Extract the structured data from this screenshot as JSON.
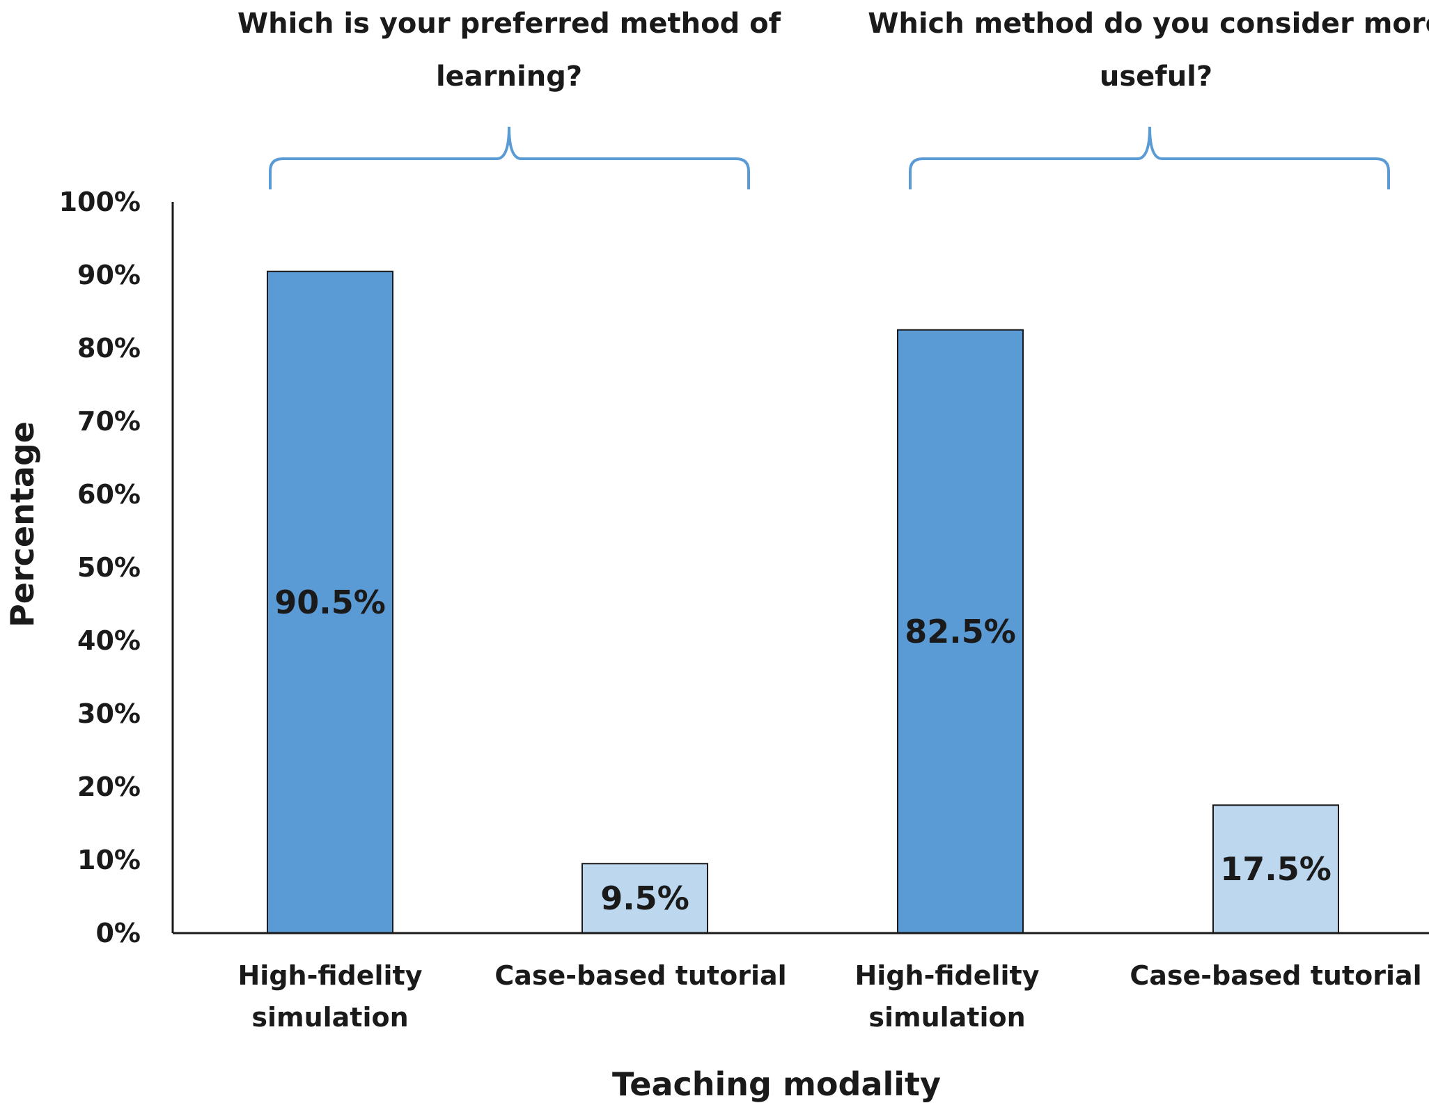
{
  "chart_data": {
    "type": "bar",
    "xlabel": "Teaching modality",
    "ylabel": "Percentage",
    "ylim": [
      0,
      100
    ],
    "yticks": [
      "0%",
      "10%",
      "20%",
      "30%",
      "40%",
      "50%",
      "60%",
      "70%",
      "80%",
      "90%",
      "100%"
    ],
    "groups": [
      {
        "question_lines": [
          "Which is your preferred method of",
          "learning?"
        ],
        "bars": [
          {
            "category_lines": [
              "High-fidelity",
              "simulation"
            ],
            "value": 90.5,
            "label": "90.5%",
            "color": "#5b9bd5"
          },
          {
            "category_lines": [
              "Case-based tutorial"
            ],
            "value": 9.5,
            "label": "9.5%",
            "color": "#bdd7ee"
          }
        ]
      },
      {
        "question_lines": [
          "Which method do you consider more",
          "useful?"
        ],
        "bars": [
          {
            "category_lines": [
              "High-fidelity",
              "simulation"
            ],
            "value": 82.5,
            "label": "82.5%",
            "color": "#5b9bd5"
          },
          {
            "category_lines": [
              "Case-based tutorial"
            ],
            "value": 17.5,
            "label": "17.5%",
            "color": "#bdd7ee"
          }
        ]
      }
    ],
    "grid": false,
    "legend": "none",
    "colors": {
      "dark_bar": "#5b9bd5",
      "light_bar": "#bdd7ee",
      "brace": "#5b9bd5",
      "axis": "#1a1a1a"
    }
  }
}
